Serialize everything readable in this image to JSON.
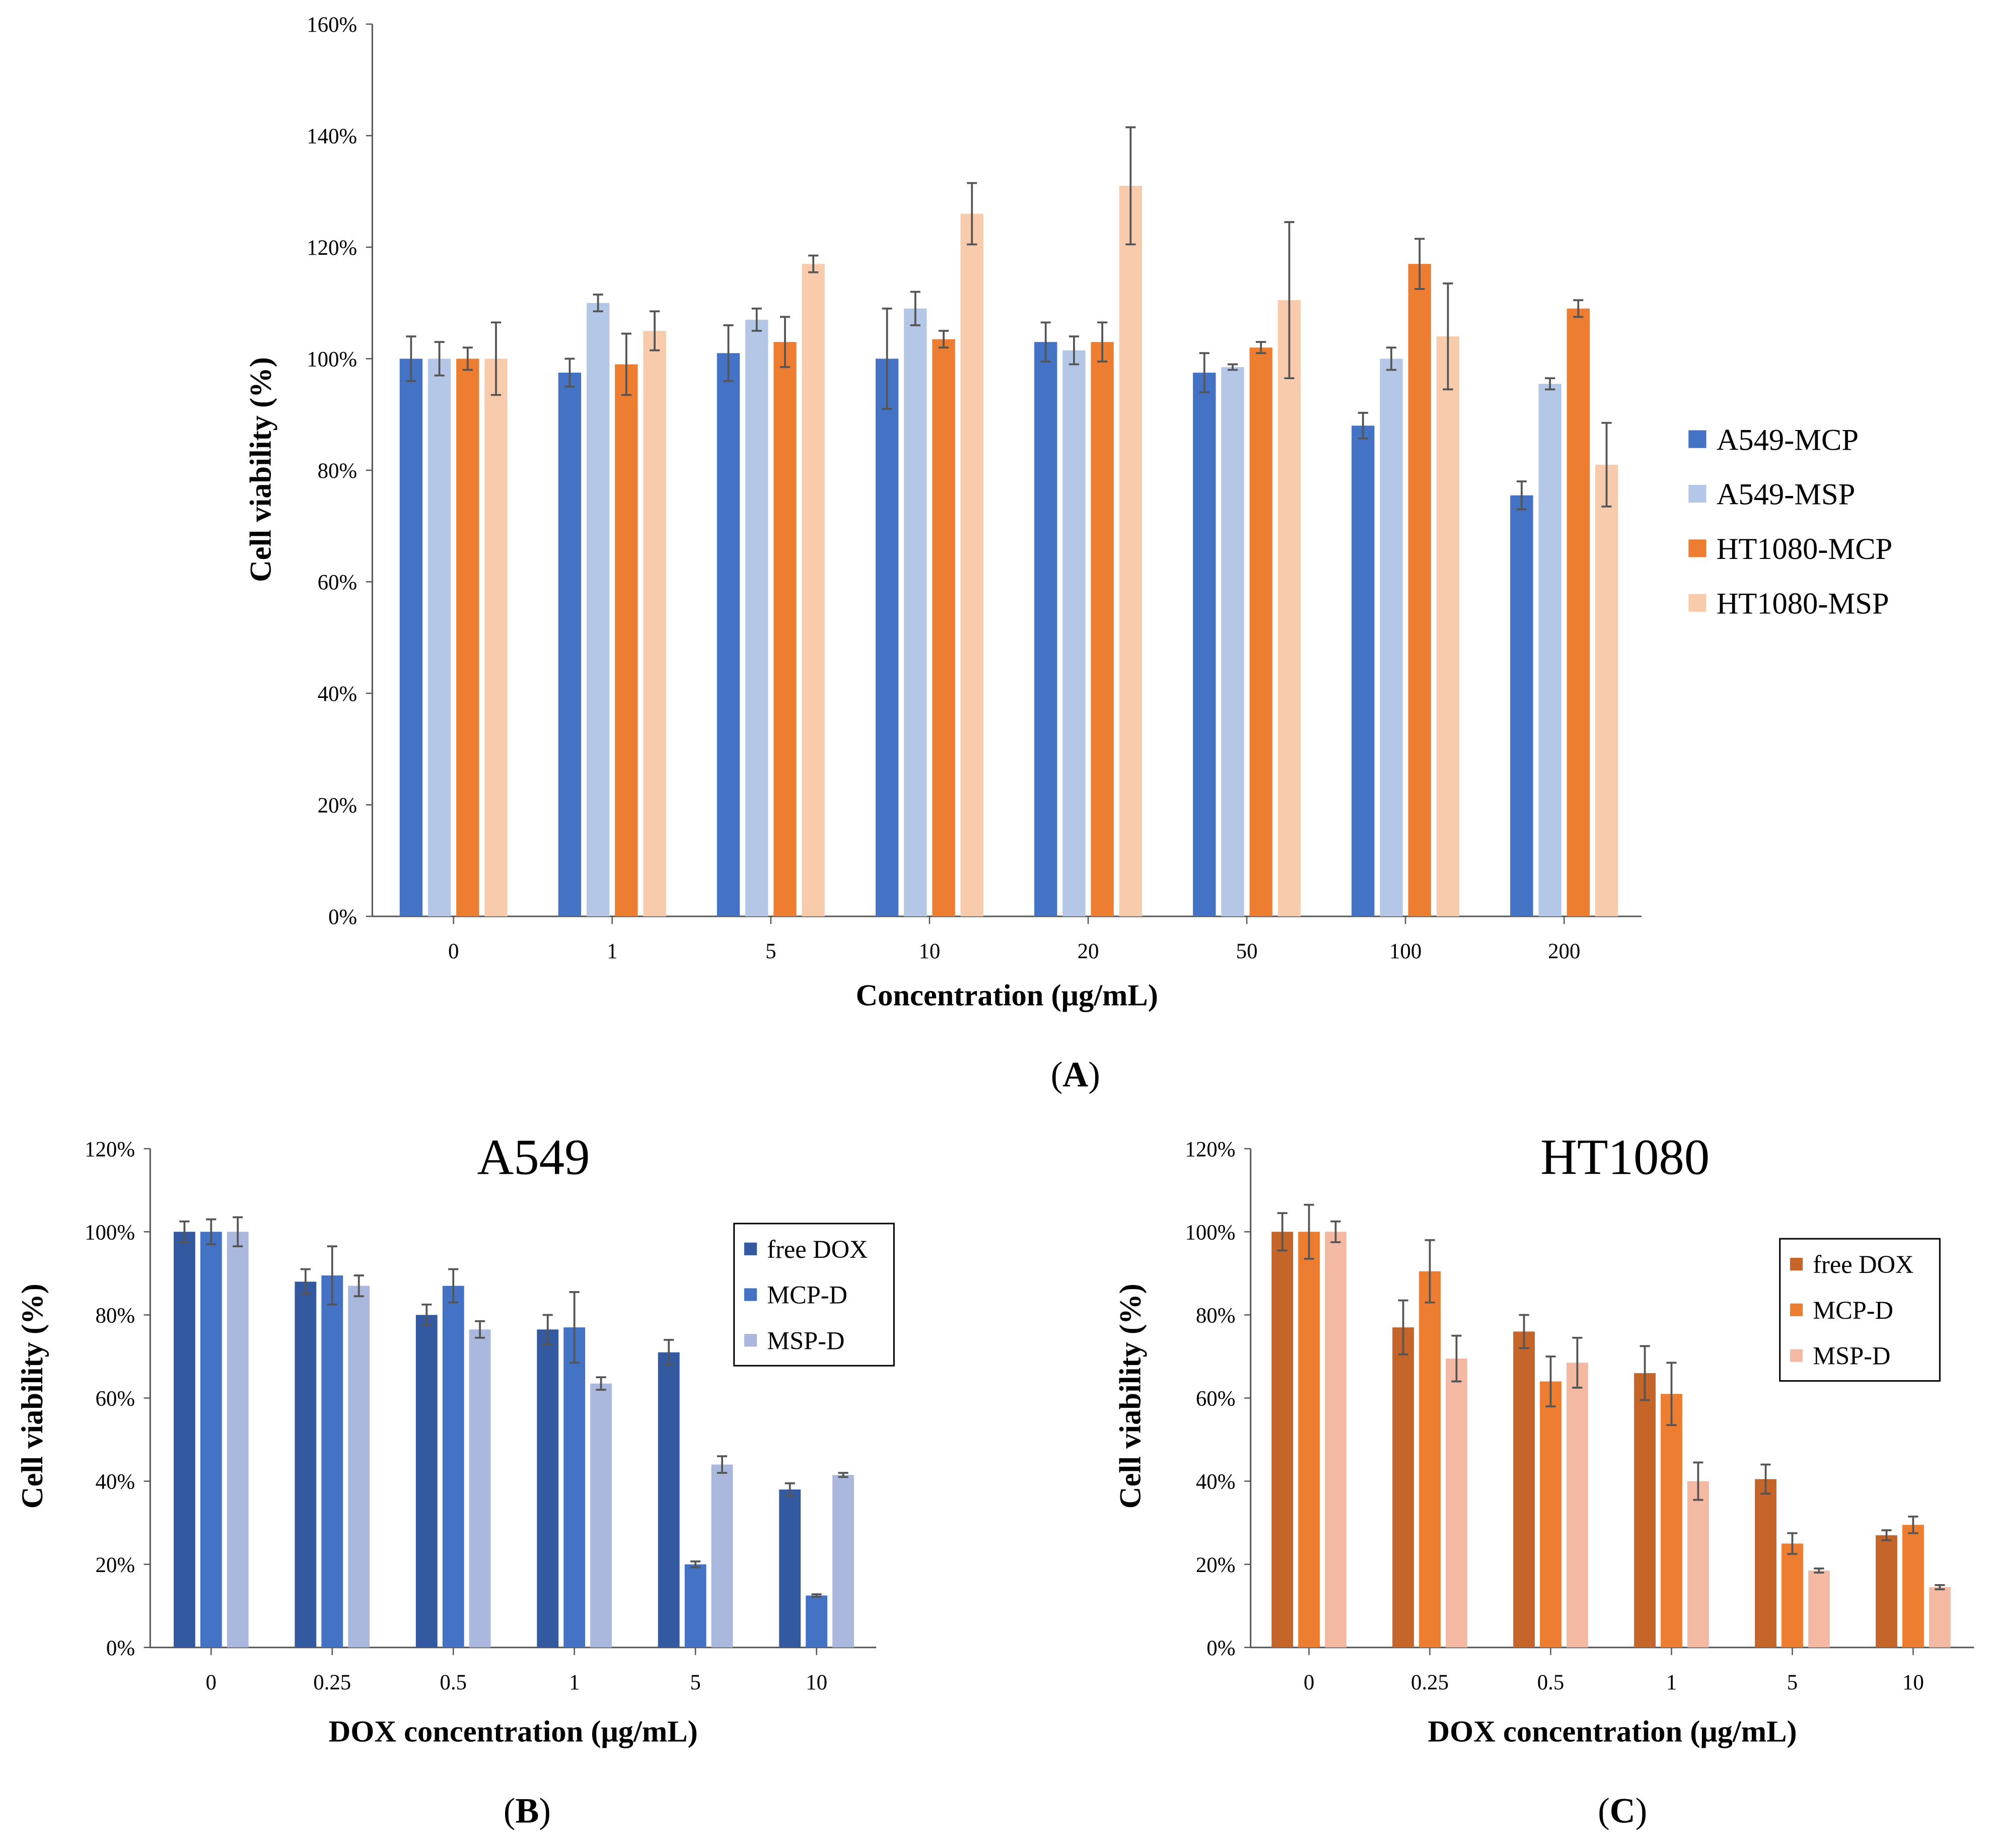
{
  "chart_data": [
    {
      "panel_label": "A",
      "type": "bar",
      "title": "",
      "xlabel": "Concentration (μg/mL)",
      "ylabel": "Cell viability (%)",
      "ylim": [
        0,
        160
      ],
      "yticks": [
        "0%",
        "20%",
        "40%",
        "60%",
        "80%",
        "100%",
        "120%",
        "140%",
        "160%"
      ],
      "categories": [
        "0",
        "1",
        "5",
        "10",
        "20",
        "50",
        "100",
        "200"
      ],
      "legend_position": "right",
      "series": [
        {
          "name": "A549-MCP",
          "color": "#4472C4",
          "values": [
            100,
            97.5,
            101,
            100,
            103,
            97.5,
            88,
            75.5
          ],
          "errors": [
            4,
            2.5,
            5,
            9,
            3.5,
            3.5,
            2.3,
            2.5
          ]
        },
        {
          "name": "A549-MSP",
          "color": "#B4C7E7",
          "values": [
            100,
            110,
            107,
            109,
            101.5,
            98.5,
            100,
            95.5
          ],
          "errors": [
            3,
            1.5,
            2,
            3,
            2.5,
            0.5,
            2,
            1
          ]
        },
        {
          "name": "HT1080-MCP",
          "color": "#ED7D31",
          "values": [
            100,
            99,
            103,
            103.5,
            103,
            102,
            117,
            109
          ],
          "errors": [
            2,
            5.5,
            4.5,
            1.5,
            3.5,
            1,
            4.5,
            1.5
          ]
        },
        {
          "name": "HT1080-MSP",
          "color": "#F8CBAD",
          "values": [
            100,
            105,
            117,
            126,
            131,
            110.5,
            104,
            81
          ],
          "errors": [
            6.5,
            3.5,
            1.5,
            5.5,
            10.5,
            14,
            9.5,
            7.5
          ]
        }
      ]
    },
    {
      "panel_label": "B",
      "type": "bar",
      "title": "A549",
      "xlabel": "DOX concentration (μg/mL)",
      "ylabel": "Cell viability (%)",
      "ylim": [
        0,
        120
      ],
      "yticks": [
        "0%",
        "20%",
        "40%",
        "60%",
        "80%",
        "100%",
        "120%"
      ],
      "categories": [
        "0",
        "0.25",
        "0.5",
        "1",
        "5",
        "10"
      ],
      "legend_position": "top-right",
      "series": [
        {
          "name": "free DOX",
          "color": "#335AA0",
          "values": [
            100,
            88,
            80,
            76.5,
            71,
            38
          ],
          "errors": [
            2.5,
            3,
            2.5,
            3.5,
            3,
            1.5
          ]
        },
        {
          "name": "MCP-D",
          "color": "#4472C4",
          "values": [
            100,
            89.5,
            87,
            77,
            20,
            12.5
          ],
          "errors": [
            3,
            7,
            4,
            8.5,
            0.7,
            0.3
          ]
        },
        {
          "name": "MSP-D",
          "color": "#A9B8DC",
          "values": [
            100,
            87,
            76.5,
            63.5,
            44,
            41.5
          ],
          "errors": [
            3.5,
            2.5,
            2,
            1.5,
            2,
            0.5
          ]
        }
      ]
    },
    {
      "panel_label": "C",
      "type": "bar",
      "title": "HT1080",
      "xlabel": "DOX concentration (μg/mL)",
      "ylabel": "Cell viability (%)",
      "ylim": [
        0,
        120
      ],
      "yticks": [
        "0%",
        "20%",
        "40%",
        "60%",
        "80%",
        "100%",
        "120%"
      ],
      "categories": [
        "0",
        "0.25",
        "0.5",
        "1",
        "5",
        "10"
      ],
      "legend_position": "top-right",
      "series": [
        {
          "name": "free DOX",
          "color": "#C5652A",
          "values": [
            100,
            77,
            76,
            66,
            40.5,
            27
          ],
          "errors": [
            4.5,
            6.5,
            4,
            6.5,
            3.5,
            1.2
          ]
        },
        {
          "name": "MCP-D",
          "color": "#ED7D31",
          "values": [
            100,
            90.5,
            64,
            61,
            25,
            29.5
          ],
          "errors": [
            6.5,
            7.5,
            6,
            7.5,
            2.5,
            2
          ]
        },
        {
          "name": "MSP-D",
          "color": "#F4B9A3",
          "values": [
            100,
            69.5,
            68.5,
            40,
            18.5,
            14.5
          ],
          "errors": [
            2.5,
            5.5,
            6,
            4.5,
            0.5,
            0.5
          ]
        }
      ]
    }
  ]
}
